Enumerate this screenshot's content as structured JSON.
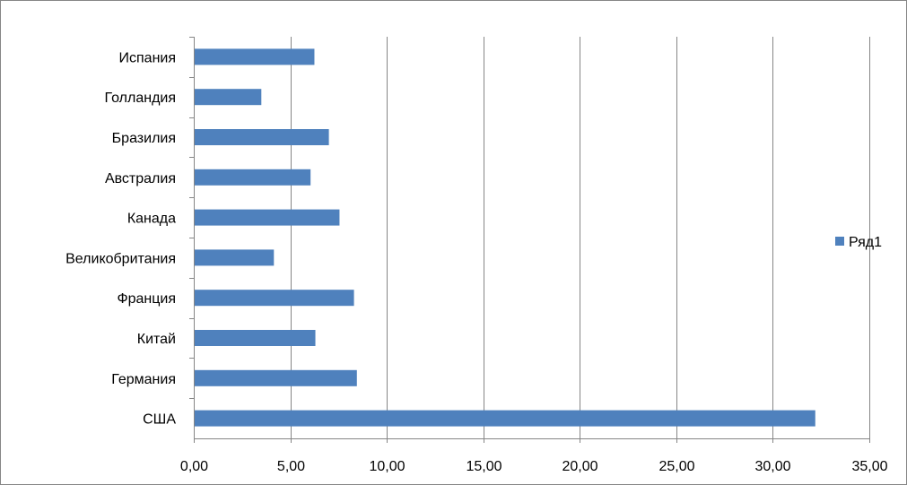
{
  "chart_data": {
    "type": "bar",
    "orientation": "horizontal",
    "title": "",
    "xlabel": "",
    "ylabel": "",
    "categories": [
      "США",
      "Германия",
      "Китай",
      "Франция",
      "Великобритания",
      "Канада",
      "Австралия",
      "Бразилия",
      "Голландия",
      "Испания"
    ],
    "series": [
      {
        "name": "Ряд1",
        "color": "#4F81BD",
        "values": [
          32.2,
          8.45,
          6.3,
          8.3,
          4.15,
          7.55,
          6.05,
          7.0,
          3.5,
          6.25
        ]
      }
    ],
    "xlim": [
      0,
      35
    ],
    "x_ticks": [
      "0,00",
      "5,00",
      "10,00",
      "15,00",
      "20,00",
      "25,00",
      "30,00",
      "35,00"
    ],
    "grid": "vertical",
    "legend": "right"
  }
}
